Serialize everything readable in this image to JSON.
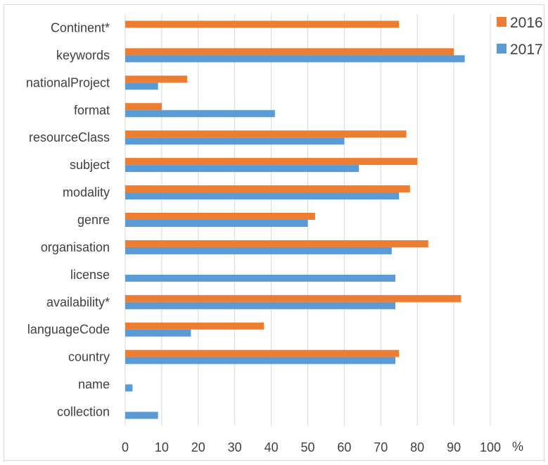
{
  "chart_data": {
    "type": "bar",
    "orientation": "horizontal",
    "categories": [
      "Continent*",
      "keywords",
      "nationalProject",
      "format",
      "resourceClass",
      "subject",
      "modality",
      "genre",
      "organisation",
      "license",
      "availability*",
      "languageCode",
      "country",
      "name",
      "collection"
    ],
    "series": [
      {
        "name": "2016",
        "color": "#ed7d31",
        "values": [
          75,
          90,
          17,
          10,
          77,
          80,
          78,
          52,
          83,
          null,
          92,
          38,
          75,
          null,
          null
        ]
      },
      {
        "name": "2017",
        "color": "#5b9bd5",
        "values": [
          null,
          93,
          9,
          41,
          60,
          64,
          75,
          50,
          73,
          74,
          74,
          18,
          74,
          2,
          9
        ]
      }
    ],
    "xlim": [
      0,
      100
    ],
    "xticks": [
      "0",
      "10",
      "20",
      "30",
      "40",
      "50",
      "60",
      "70",
      "80",
      "90",
      "100"
    ],
    "xunit": "%",
    "gridlines": true,
    "legend": "top-right"
  }
}
